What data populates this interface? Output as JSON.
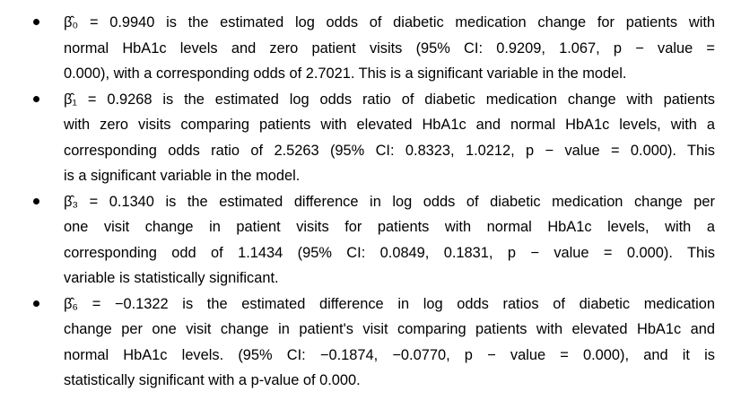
{
  "items": [
    {
      "lines": [
        "β̂₀ = 0.9940 is the estimated log odds of diabetic medication change for patients with",
        "normal HbA1c levels and zero patient visits (95% CI: 0.9209, 1.067, p − value =",
        "0.000), with a corresponding odds of 2.7021. This is a significant variable in the model."
      ]
    },
    {
      "lines": [
        "β̂₁ = 0.9268 is the estimated log odds ratio of diabetic medication change with patients",
        "with zero visits comparing patients with elevated HbA1c and normal HbA1c levels, with a",
        "corresponding odds ratio of 2.5263 (95% CI: 0.8323, 1.0212, p − value = 0.000). This",
        "is a significant variable in the model."
      ]
    },
    {
      "lines": [
        "β̂₃ = 0.1340 is the estimated difference in log odds of diabetic medication change per",
        "one visit change in patient visits for patients with normal HbA1c levels, with a",
        "corresponding odd of 1.1434 (95% CI: 0.0849, 0.1831, p − value = 0.000). This",
        "variable is statistically significant."
      ]
    },
    {
      "lines": [
        "β̂₆ = −0.1322 is the estimated difference in log odds ratios of diabetic medication",
        "change per one visit change in patient's visit comparing patients with elevated HbA1c and",
        "normal HbA1c levels. (95% CI: −0.1874, −0.0770, p − value = 0.000), and it is",
        "statistically significant with a p-value of 0.000."
      ]
    }
  ]
}
